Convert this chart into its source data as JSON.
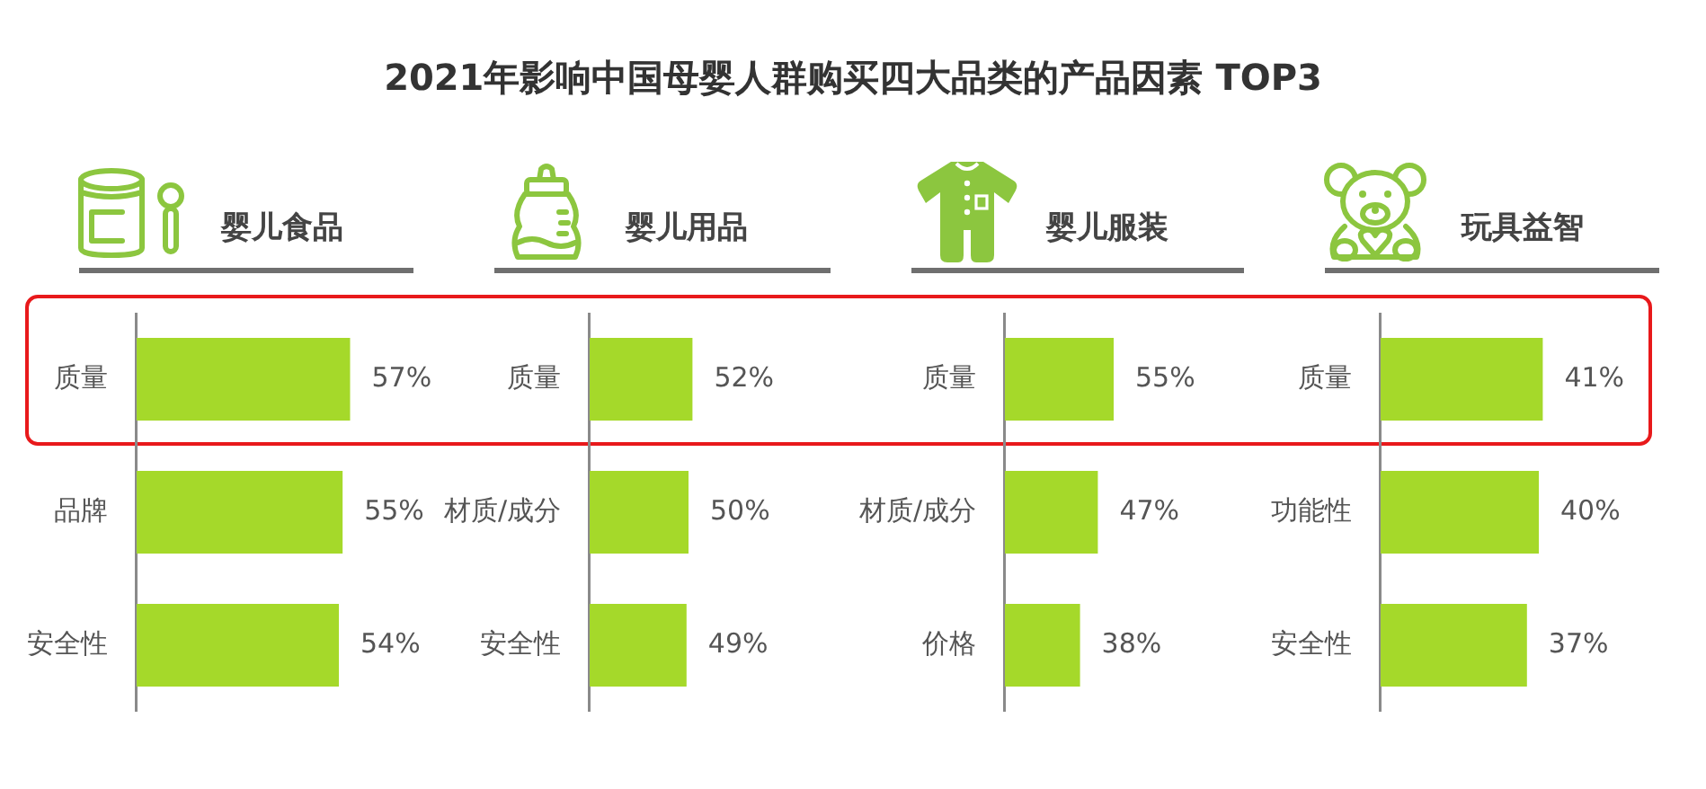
{
  "chart_data": [
    {
      "type": "bar",
      "orientation": "horizontal",
      "subtitle": "婴儿食品",
      "categories": [
        "质量",
        "品牌",
        "安全性"
      ],
      "values": [
        57,
        55,
        54
      ],
      "value_labels": [
        "57%",
        "55%",
        "54%"
      ],
      "color": "#a5d92a",
      "tick_labels": "y"
    },
    {
      "type": "bar",
      "orientation": "horizontal",
      "title": "2021年影响中国母婴人群购买四大品类的产品因素 TOP3",
      "subtitle": "婴儿用品",
      "categories": [
        "质量",
        "材质/成分",
        "安全性"
      ],
      "values": [
        52,
        50,
        49
      ],
      "value_labels": [
        "52%",
        "50%",
        "49%"
      ],
      "color": "#a5d92a",
      "tick_labels": "y"
    },
    {
      "type": "bar",
      "orientation": "horizontal",
      "subtitle": "婴儿服装",
      "categories": [
        "质量",
        "材质/成分",
        "价格"
      ],
      "values": [
        55,
        47,
        38
      ],
      "value_labels": [
        "55%",
        "47%",
        "38%"
      ],
      "color": "#a5d92a",
      "tick_labels": "y"
    },
    {
      "type": "bar",
      "orientation": "horizontal",
      "subtitle": "玩具益智",
      "categories": [
        "质量",
        "功能性",
        "安全性"
      ],
      "values": [
        41,
        40,
        37
      ],
      "value_labels": [
        "41%",
        "40%",
        "37%"
      ],
      "color": "#a5d92a",
      "tick_labels": "y"
    }
  ]
}
